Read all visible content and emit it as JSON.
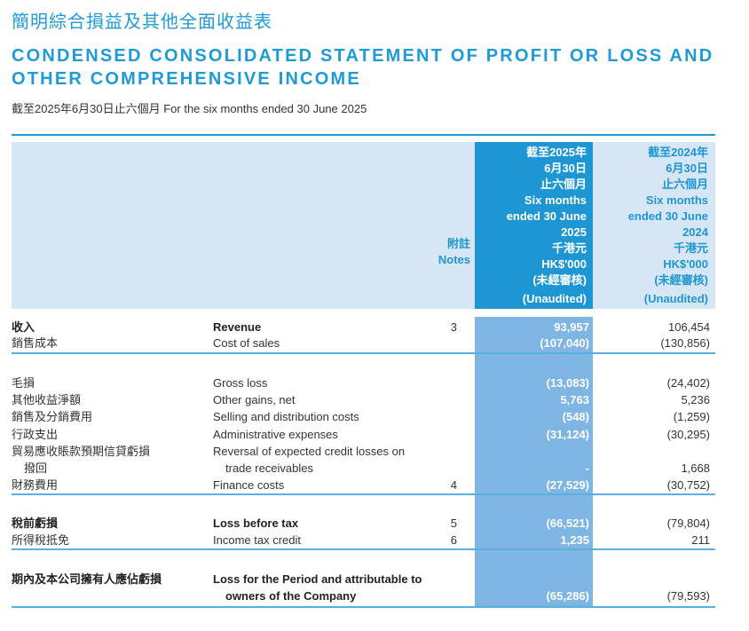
{
  "title_zh": "簡明綜合損益及其他全面收益表",
  "title_en": "CONDENSED CONSOLIDATED STATEMENT OF PROFIT OR LOSS AND OTHER COMPREHENSIVE INCOME",
  "subtitle": "截至2025年6月30日止六個月 For the six months ended 30 June 2025",
  "header": {
    "notes": [
      "附註",
      "Notes"
    ],
    "col_2025": [
      "截至2025年",
      "6月30日",
      "止六個月",
      "Six months",
      "ended 30 June",
      "2025",
      "千港元",
      "HK$'000",
      "(未經審核)",
      "(Unaudited)"
    ],
    "col_2024": [
      "截至2024年",
      "6月30日",
      "止六個月",
      "Six months",
      "ended 30 June",
      "2024",
      "千港元",
      "HK$'000",
      "(未經審核)",
      "(Unaudited)"
    ]
  },
  "rows": [
    {
      "zh": "收入",
      "en": "Revenue",
      "note": "3",
      "v2025": "93,957",
      "v2024": "106,454",
      "bold": true
    },
    {
      "zh": "銷售成本",
      "en": "Cost of sales",
      "note": "",
      "v2025": "(107,040)",
      "v2024": "(130,856)"
    },
    {
      "zh": "毛損",
      "en": "Gross loss",
      "note": "",
      "v2025": "(13,083)",
      "v2024": "(24,402)"
    },
    {
      "zh": "其他收益淨額",
      "en": "Other gains, net",
      "note": "",
      "v2025": "5,763",
      "v2024": "5,236"
    },
    {
      "zh": "銷售及分銷費用",
      "en": "Selling and distribution costs",
      "note": "",
      "v2025": "(548)",
      "v2024": "(1,259)"
    },
    {
      "zh": "行政支出",
      "en": "Administrative expenses",
      "note": "",
      "v2025": "(31,124)",
      "v2024": "(30,295)"
    },
    {
      "zh": "貿易應收賬款預期信貸虧損",
      "en": "Reversal of expected credit losses on",
      "note": "",
      "v2025": "",
      "v2024": ""
    },
    {
      "zh": "  撥回",
      "en": "  trade receivables",
      "note": "",
      "v2025": "-",
      "v2024": "1,668"
    },
    {
      "zh": "財務費用",
      "en": "Finance costs",
      "note": "4",
      "v2025": "(27,529)",
      "v2024": "(30,752)"
    },
    {
      "zh": "稅前虧損",
      "en": "Loss before tax",
      "note": "5",
      "v2025": "(66,521)",
      "v2024": "(79,804)",
      "bold": true
    },
    {
      "zh": "所得稅抵免",
      "en": "Income tax credit",
      "note": "6",
      "v2025": "1,235",
      "v2024": "211"
    },
    {
      "zh": "期內及本公司擁有人應佔虧損",
      "en": "Loss for the Period and attributable to",
      "note": "",
      "v2025": "",
      "v2024": "",
      "bold": true
    },
    {
      "zh": "",
      "en": "  owners of the Company",
      "note": "",
      "v2025": "(65,286)",
      "v2024": "(79,593)",
      "bold": true
    }
  ]
}
